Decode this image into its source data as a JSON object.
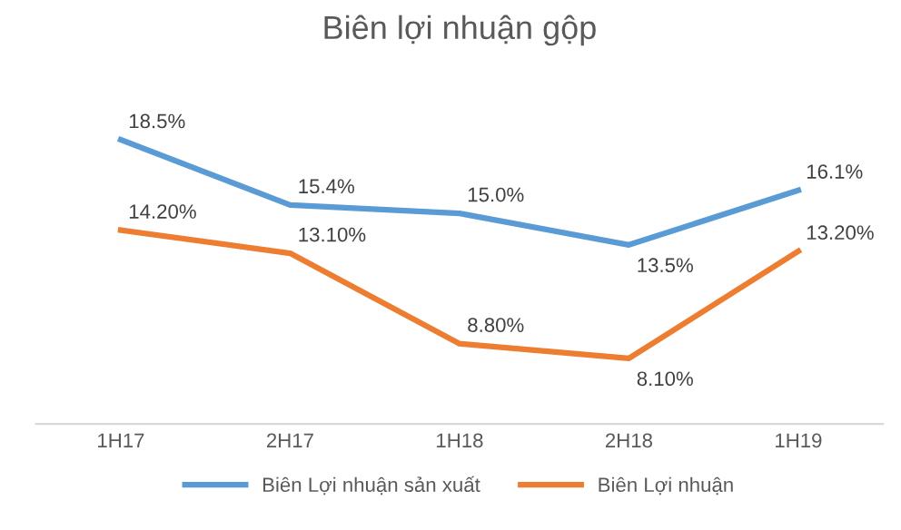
{
  "chart_data": {
    "type": "line",
    "title": "Biên lợi nhuận gộp",
    "categories": [
      "1H17",
      "2H17",
      "1H18",
      "2H18",
      "1H19"
    ],
    "series": [
      {
        "name": "Biên Lợi nhuận sản xuất",
        "color": "#5b9bd5",
        "values": [
          18.5,
          15.4,
          15.0,
          13.5,
          16.1
        ],
        "value_labels": [
          "18.5%",
          "15.4%",
          "15.0%",
          "13.5%",
          "16.1%"
        ]
      },
      {
        "name": "Biên Lợi nhuận",
        "color": "#ed7d31",
        "values": [
          14.2,
          13.1,
          8.8,
          8.1,
          13.2
        ],
        "value_labels": [
          "14.20%",
          "13.10%",
          "8.80%",
          "8.10%",
          "13.20%"
        ]
      }
    ],
    "tick_labels": "x",
    "grid": false,
    "legend": "bottom",
    "marker": "none",
    "line_style": "solid"
  }
}
